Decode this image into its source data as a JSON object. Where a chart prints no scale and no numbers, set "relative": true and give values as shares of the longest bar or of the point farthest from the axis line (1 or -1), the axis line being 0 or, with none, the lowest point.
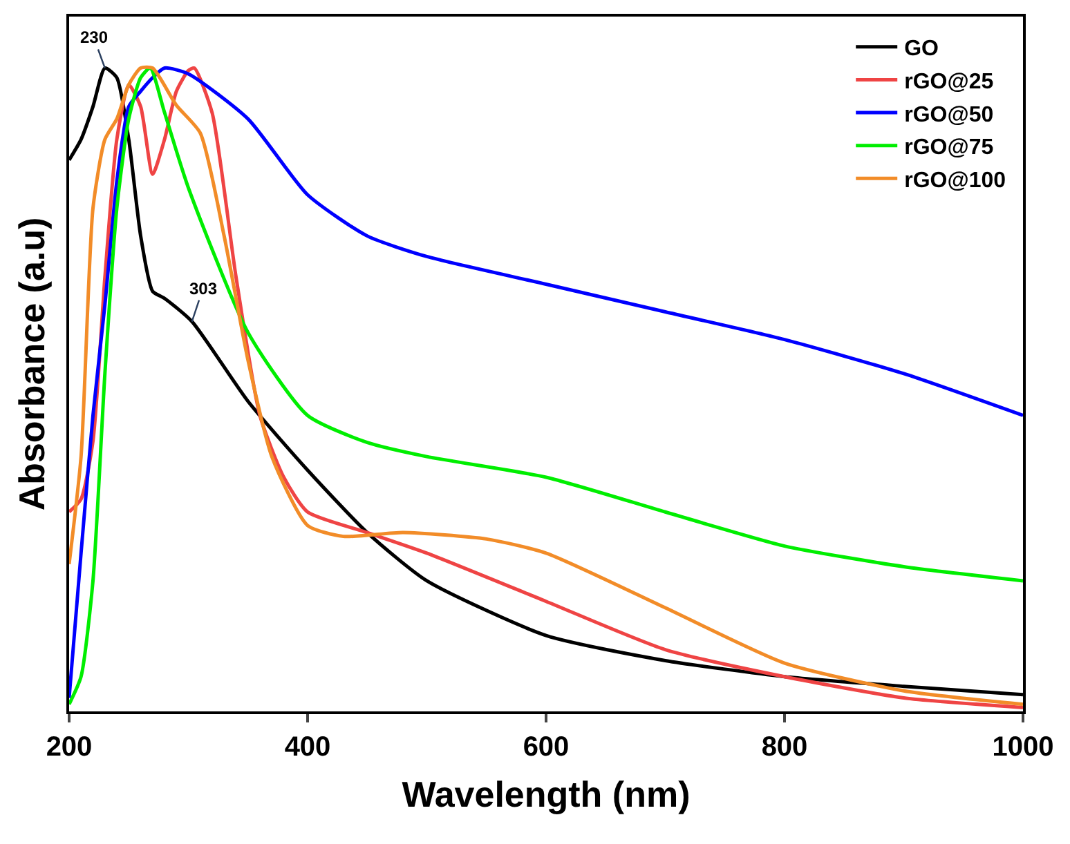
{
  "chart_data": {
    "type": "line",
    "relative": true,
    "xlabel": "Wavelength (nm)",
    "ylabel": "Absorbance (a.u)",
    "xlim": [
      200,
      1000
    ],
    "xticks": [
      200,
      400,
      600,
      800,
      1000
    ],
    "grid": false,
    "legend": "top right",
    "marker": "none",
    "line_style": "solid",
    "annotations": [
      {
        "text": "230",
        "x": 230,
        "y": 1.0
      },
      {
        "text": "303",
        "x": 303,
        "y": 0.606
      }
    ],
    "series": [
      {
        "name": "GO",
        "color": "#000000",
        "x": [
          200,
          210,
          220,
          230,
          240,
          250,
          260,
          270,
          280,
          303,
          350,
          400,
          450,
          500,
          600,
          700,
          800,
          900,
          1000
        ],
        "values": [
          0.857,
          0.889,
          0.94,
          1.0,
          0.985,
          0.889,
          0.739,
          0.653,
          0.642,
          0.606,
          0.482,
          0.375,
          0.278,
          0.203,
          0.118,
          0.079,
          0.054,
          0.039,
          0.026
        ]
      },
      {
        "name": "rGO@25",
        "color": "#ef4444",
        "x": [
          200,
          210,
          220,
          230,
          240,
          250,
          260,
          270,
          280,
          290,
          300,
          305,
          320,
          340,
          360,
          380,
          400,
          450,
          500,
          600,
          700,
          800,
          900,
          1000
        ],
        "values": [
          0.31,
          0.33,
          0.42,
          0.675,
          0.889,
          0.974,
          0.94,
          0.835,
          0.889,
          0.964,
          0.996,
          1.0,
          0.93,
          0.675,
          0.46,
          0.364,
          0.31,
          0.278,
          0.246,
          0.171,
          0.096,
          0.054,
          0.021,
          0.006
        ]
      },
      {
        "name": "rGO@50",
        "color": "#0000ff",
        "x": [
          200,
          210,
          220,
          230,
          240,
          250,
          260,
          270,
          280,
          300,
          350,
          400,
          450,
          500,
          600,
          700,
          800,
          900,
          1000
        ],
        "values": [
          0.021,
          0.246,
          0.46,
          0.632,
          0.824,
          0.94,
          0.964,
          0.985,
          1.0,
          0.991,
          0.921,
          0.803,
          0.739,
          0.707,
          0.664,
          0.621,
          0.578,
          0.525,
          0.46
        ]
      },
      {
        "name": "rGO@75",
        "color": "#00ee00",
        "x": [
          200,
          210,
          220,
          230,
          240,
          250,
          260,
          268,
          280,
          300,
          350,
          400,
          450,
          500,
          600,
          700,
          800,
          900,
          1000
        ],
        "values": [
          0.011,
          0.054,
          0.203,
          0.525,
          0.782,
          0.921,
          0.985,
          1.0,
          0.931,
          0.814,
          0.589,
          0.46,
          0.418,
          0.396,
          0.364,
          0.31,
          0.257,
          0.225,
          0.203
        ]
      },
      {
        "name": "rGO@100",
        "color": "#f28c28",
        "x": [
          200,
          210,
          220,
          230,
          240,
          250,
          260,
          270,
          290,
          310,
          330,
          350,
          370,
          400,
          430,
          480,
          550,
          600,
          700,
          800,
          900,
          1000
        ],
        "values": [
          0.229,
          0.396,
          0.782,
          0.889,
          0.921,
          0.974,
          1.0,
          1.0,
          0.942,
          0.899,
          0.739,
          0.546,
          0.396,
          0.289,
          0.272,
          0.278,
          0.268,
          0.246,
          0.161,
          0.075,
          0.032,
          0.011
        ]
      }
    ]
  }
}
